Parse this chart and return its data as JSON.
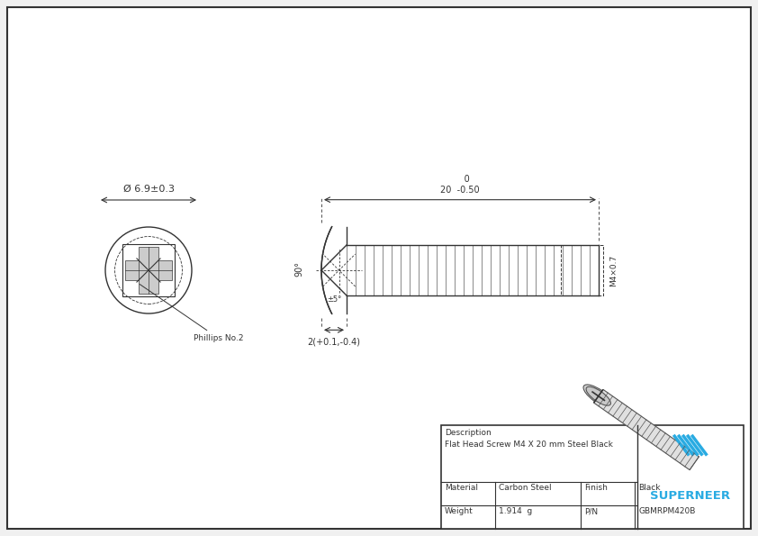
{
  "bg_color": "#f0f0f0",
  "border_color": "#333333",
  "line_color": "#333333",
  "dashed_color": "#555555",
  "title_text": "Description\nFlat Head Screw M4 X 20 mm Steel Black",
  "material": "Carbon Steel",
  "finish": "Black",
  "weight": "1.914  g",
  "pn": "GBMRPM420B",
  "dim_head_width": "2(+0.1,-0.4)",
  "dim_length": "     0\n20  -0.50",
  "dim_diameter": "Ø 6.9±0.3",
  "dim_angle": "90°",
  "dim_angle2": "±5°",
  "dim_thread": "M4×0.7",
  "label_phillips": "Phillips No.2",
  "superneer_color": "#29abe2",
  "lw": 1.0,
  "thin_lw": 0.7
}
